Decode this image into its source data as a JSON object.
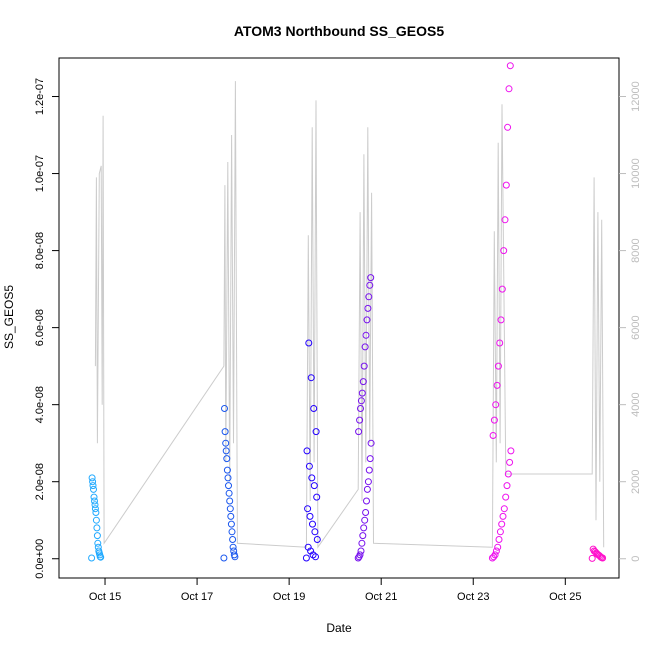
{
  "chart_data": {
    "type": "scatter",
    "title": "ATOM3 Northbound SS_GEOS5",
    "xlabel": "Date",
    "ylabel": "SS_GEOS5",
    "x_range": [
      "Oct 14 2016 00:00",
      "Oct 26 2016 04:00"
    ],
    "x_ticks": [
      "Oct 15",
      "Oct 17",
      "Oct 19",
      "Oct 21",
      "Oct 23",
      "Oct 25"
    ],
    "y_left_range": [
      -5e-09,
      1.3e-07
    ],
    "y_left_ticks": [
      "0.0e+00",
      "2.0e-08",
      "4.0e-08",
      "6.0e-08",
      "8.0e-08",
      "1.0e-07",
      "1.2e-07"
    ],
    "y_right_range": [
      -500,
      13000
    ],
    "y_right_ticks": [
      "0",
      "2000",
      "4000",
      "6000",
      "8000",
      "10000",
      "12000"
    ],
    "grid": false,
    "colors": {
      "line": "#cccccc",
      "right_axis": "#bdbdbd",
      "flights": [
        "#22aaff",
        "#1a57ee",
        "#2200ff",
        "#7711ee",
        "#ee11ee",
        "#ff11cc"
      ]
    },
    "series": [
      {
        "marker": "circle-open",
        "axis": "left",
        "flights": [
          {
            "x_start": "Oct 14 2016 17:00",
            "x_end": "Oct 14 2016 22:00",
            "y": [
              2e-10,
              4e-10,
              5e-10,
              1e-09,
              1.5e-09,
              2e-09,
              3e-09,
              4e-09,
              6e-09,
              8e-09,
              1e-08,
              1.2e-08,
              1.3e-08,
              1.4e-08,
              1.5e-08,
              1.6e-08,
              1.8e-08,
              1.9e-08,
              2e-08,
              2.1e-08
            ]
          },
          {
            "x_start": "Oct 17 2016 14:00",
            "x_end": "Oct 17 2016 20:00",
            "y": [
              2e-10,
              5e-10,
              1e-09,
              2e-09,
              3e-09,
              5e-09,
              7e-09,
              9e-09,
              1.1e-08,
              1.3e-08,
              1.5e-08,
              1.7e-08,
              1.9e-08,
              2.1e-08,
              2.3e-08,
              2.6e-08,
              2.8e-08,
              3e-08,
              3.3e-08,
              3.9e-08
            ]
          },
          {
            "x_start": "Oct 19 2016 09:00",
            "x_end": "Oct 19 2016 15:00",
            "y": [
              2e-10,
              5e-10,
              1e-09,
              2e-09,
              3e-09,
              5e-09,
              7e-09,
              9e-09,
              1.1e-08,
              1.3e-08,
              1.6e-08,
              1.9e-08,
              2.1e-08,
              2.4e-08,
              2.8e-08,
              3.3e-08,
              3.9e-08,
              4.7e-08,
              5.6e-08
            ]
          },
          {
            "x_start": "Oct 20 2016 12:00",
            "x_end": "Oct 20 2016 19:00",
            "y": [
              2e-10,
              5e-10,
              1e-09,
              2e-09,
              4e-09,
              6e-09,
              8e-09,
              1e-08,
              1.2e-08,
              1.5e-08,
              1.8e-08,
              2e-08,
              2.3e-08,
              2.6e-08,
              3e-08,
              3.3e-08,
              3.6e-08,
              3.9e-08,
              4.1e-08,
              4.3e-08,
              4.6e-08,
              5e-08,
              5.5e-08,
              5.8e-08,
              6.2e-08,
              6.5e-08,
              6.8e-08,
              7.1e-08,
              7.3e-08
            ]
          },
          {
            "x_start": "Oct 23 2016 10:00",
            "x_end": "Oct 23 2016 20:00",
            "y": [
              2e-10,
              5e-10,
              1e-09,
              2e-09,
              3e-09,
              5e-09,
              7e-09,
              9e-09,
              1.1e-08,
              1.3e-08,
              1.6e-08,
              1.9e-08,
              2.2e-08,
              2.5e-08,
              2.8e-08,
              3.2e-08,
              3.6e-08,
              4e-08,
              4.5e-08,
              5e-08,
              5.6e-08,
              6.2e-08,
              7e-08,
              8e-08,
              8.8e-08,
              9.7e-08,
              1.12e-07,
              1.22e-07,
              1.28e-07
            ]
          },
          {
            "x_start": "Oct 25 2016 14:00",
            "x_end": "Oct 25 2016 20:00",
            "y": [
              1e-10,
              2e-10,
              3e-10,
              5e-10,
              8e-10,
              1e-09,
              1.2e-09,
              1.5e-09,
              1.8e-09,
              2e-09,
              2.5e-09
            ]
          }
        ]
      },
      {
        "marker": "line",
        "axis": "right",
        "points": [
          [
            "Oct 14 2016 19:00",
            5000
          ],
          [
            "Oct 14 2016 19:30",
            9900
          ],
          [
            "Oct 14 2016 20:00",
            3000
          ],
          [
            "Oct 14 2016 21:00",
            10000
          ],
          [
            "Oct 14 2016 22:00",
            10200
          ],
          [
            "Oct 14 2016 22:30",
            4000
          ],
          [
            "Oct 14 2016 23:00",
            11500
          ],
          [
            "Oct 14 2016 23:30",
            400
          ],
          [
            "Oct 17 2016 14:00",
            5000
          ],
          [
            "Oct 17 2016 14:30",
            9700
          ],
          [
            "Oct 17 2016 15:00",
            2500
          ],
          [
            "Oct 17 2016 16:00",
            10300
          ],
          [
            "Oct 17 2016 17:00",
            2000
          ],
          [
            "Oct 17 2016 18:00",
            11000
          ],
          [
            "Oct 17 2016 19:00",
            3000
          ],
          [
            "Oct 17 2016 20:00",
            12400
          ],
          [
            "Oct 17 2016 21:00",
            400
          ],
          [
            "Oct 19 2016 09:00",
            300
          ],
          [
            "Oct 19 2016 10:00",
            8400
          ],
          [
            "Oct 19 2016 11:00",
            1500
          ],
          [
            "Oct 19 2016 12:00",
            11200
          ],
          [
            "Oct 19 2016 13:00",
            2500
          ],
          [
            "Oct 19 2016 14:00",
            11900
          ],
          [
            "Oct 19 2016 15:00",
            300
          ],
          [
            "Oct 20 2016 12:00",
            1800
          ],
          [
            "Oct 20 2016 13:00",
            9000
          ],
          [
            "Oct 20 2016 14:00",
            1500
          ],
          [
            "Oct 20 2016 15:00",
            10500
          ],
          [
            "Oct 20 2016 16:00",
            2500
          ],
          [
            "Oct 20 2016 17:00",
            11200
          ],
          [
            "Oct 20 2016 18:00",
            3000
          ],
          [
            "Oct 20 2016 19:00",
            9500
          ],
          [
            "Oct 20 2016 20:00",
            400
          ],
          [
            "Oct 23 2016 10:00",
            300
          ],
          [
            "Oct 23 2016 11:00",
            8500
          ],
          [
            "Oct 23 2016 12:00",
            2500
          ],
          [
            "Oct 23 2016 13:00",
            10800
          ],
          [
            "Oct 23 2016 14:00",
            3000
          ],
          [
            "Oct 23 2016 15:00",
            11800
          ],
          [
            "Oct 23 2016 17:00",
            2200
          ],
          [
            "Oct 25 2016 14:00",
            2200
          ],
          [
            "Oct 25 2016 15:00",
            9900
          ],
          [
            "Oct 25 2016 16:00",
            1000
          ],
          [
            "Oct 25 2016 17:00",
            9000
          ],
          [
            "Oct 25 2016 18:00",
            2000
          ],
          [
            "Oct 25 2016 19:00",
            8800
          ],
          [
            "Oct 25 2016 20:00",
            300
          ]
        ]
      }
    ]
  }
}
